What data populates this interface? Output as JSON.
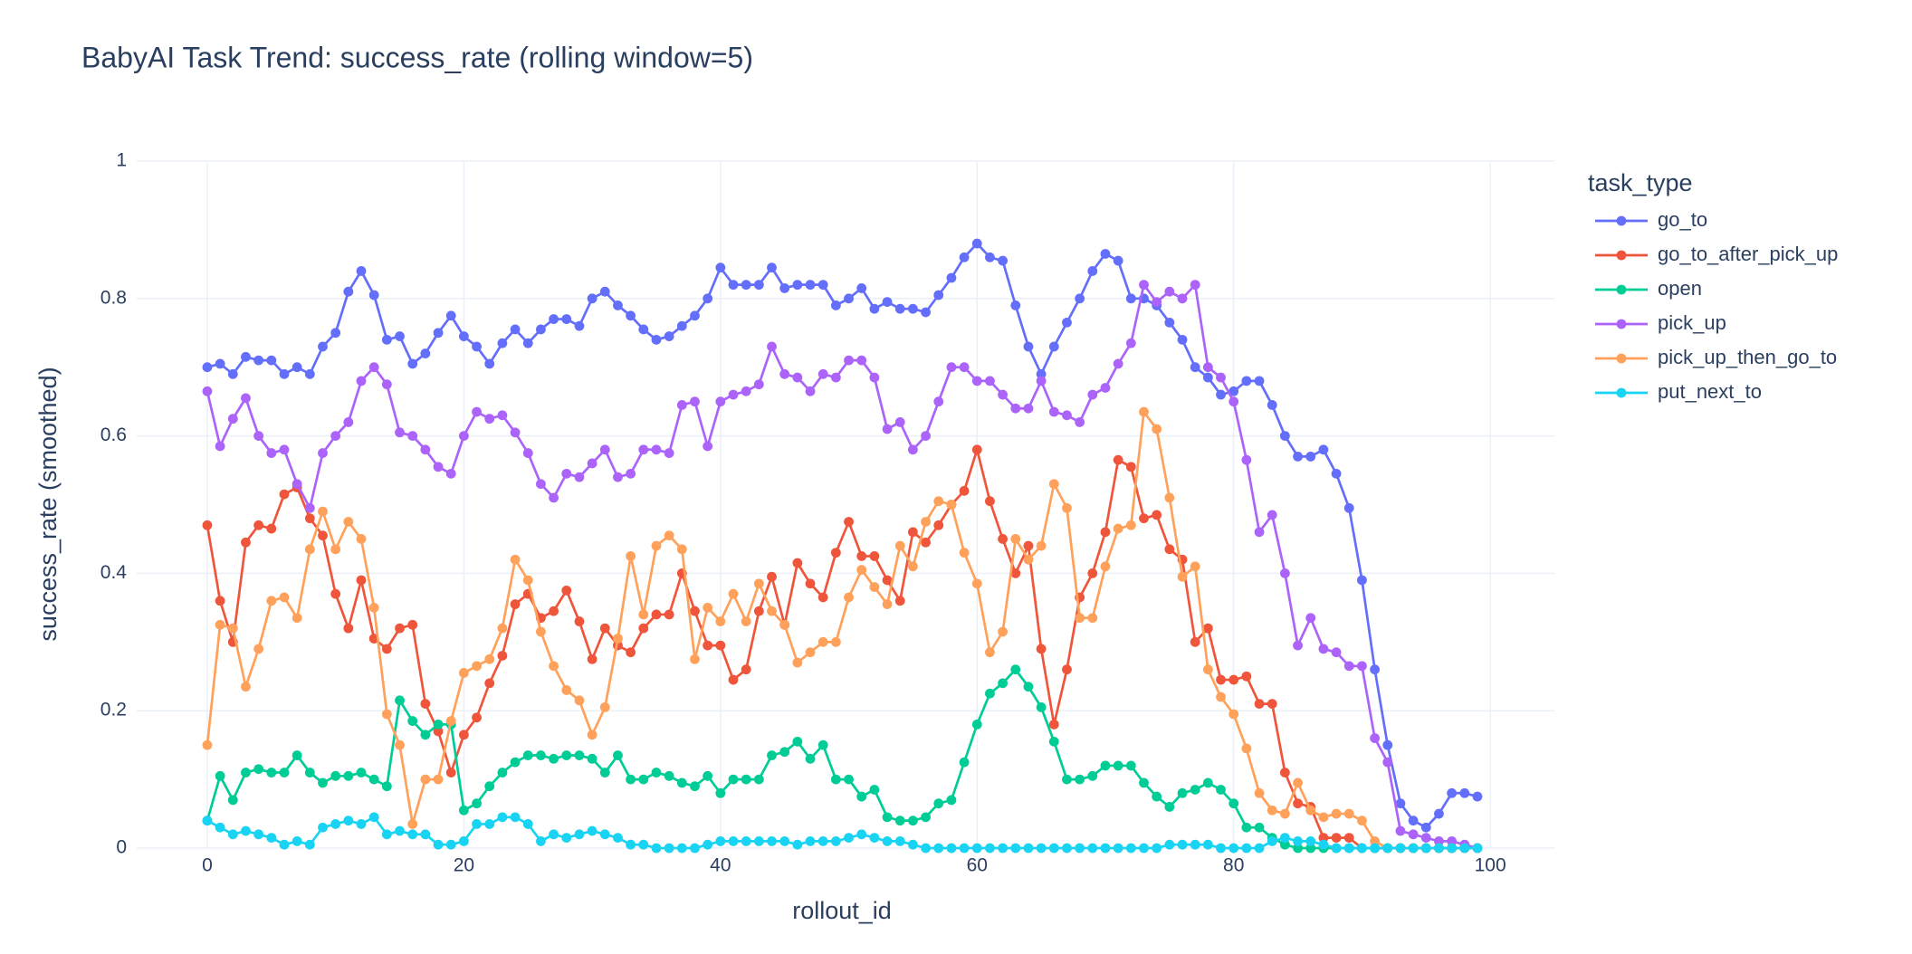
{
  "chart_data": {
    "type": "line",
    "title": "BabyAI Task Trend: success_rate (rolling window=5)",
    "x_label": "rollout_id",
    "y_label": "success_rate (smoothed)",
    "legend_title": "task_type",
    "legend": "right",
    "grid": true,
    "xlim": [
      -5.5,
      105
    ],
    "ylim": [
      0,
      1
    ],
    "xticks": [
      0,
      20,
      40,
      60,
      80,
      100
    ],
    "yticks": [
      0,
      0.2,
      0.4,
      0.6,
      0.8,
      1
    ],
    "x": [
      0,
      1,
      2,
      3,
      4,
      5,
      6,
      7,
      8,
      9,
      10,
      11,
      12,
      13,
      14,
      15,
      16,
      17,
      18,
      19,
      20,
      21,
      22,
      23,
      24,
      25,
      26,
      27,
      28,
      29,
      30,
      31,
      32,
      33,
      34,
      35,
      36,
      37,
      38,
      39,
      40,
      41,
      42,
      43,
      44,
      45,
      46,
      47,
      48,
      49,
      50,
      51,
      52,
      53,
      54,
      55,
      56,
      57,
      58,
      59,
      60,
      61,
      62,
      63,
      64,
      65,
      66,
      67,
      68,
      69,
      70,
      71,
      72,
      73,
      74,
      75,
      76,
      77,
      78,
      79,
      80,
      81,
      82,
      83,
      84,
      85,
      86,
      87,
      88,
      89,
      90,
      91,
      92,
      93,
      94,
      95,
      96,
      97,
      98,
      99
    ],
    "series": [
      {
        "name": "go_to",
        "color": "#636efa",
        "values": [
          0.7,
          0.705,
          0.69,
          0.715,
          0.71,
          0.71,
          0.69,
          0.7,
          0.69,
          0.73,
          0.75,
          0.81,
          0.84,
          0.805,
          0.74,
          0.745,
          0.705,
          0.72,
          0.75,
          0.775,
          0.745,
          0.73,
          0.705,
          0.735,
          0.755,
          0.735,
          0.755,
          0.77,
          0.77,
          0.76,
          0.8,
          0.81,
          0.79,
          0.775,
          0.755,
          0.74,
          0.745,
          0.76,
          0.775,
          0.8,
          0.845,
          0.82,
          0.82,
          0.82,
          0.845,
          0.815,
          0.82,
          0.82,
          0.82,
          0.79,
          0.8,
          0.815,
          0.785,
          0.795,
          0.785,
          0.785,
          0.78,
          0.805,
          0.83,
          0.86,
          0.88,
          0.86,
          0.855,
          0.79,
          0.73,
          0.69,
          0.73,
          0.765,
          0.8,
          0.84,
          0.865,
          0.855,
          0.8,
          0.8,
          0.79,
          0.765,
          0.74,
          0.7,
          0.685,
          0.66,
          0.665,
          0.68,
          0.68,
          0.645,
          0.6,
          0.57,
          0.57,
          0.58,
          0.545,
          0.495,
          0.39,
          0.26,
          0.15,
          0.065,
          0.04,
          0.03,
          0.05,
          0.08,
          0.08,
          0.075
        ]
      },
      {
        "name": "go_to_after_pick_up",
        "color": "#EF553B",
        "values": [
          0.47,
          0.36,
          0.3,
          0.445,
          0.47,
          0.465,
          0.515,
          0.525,
          0.48,
          0.455,
          0.37,
          0.32,
          0.39,
          0.305,
          0.29,
          0.32,
          0.325,
          0.21,
          0.17,
          0.11,
          0.165,
          0.19,
          0.24,
          0.28,
          0.355,
          0.37,
          0.335,
          0.345,
          0.375,
          0.33,
          0.275,
          0.32,
          0.295,
          0.285,
          0.32,
          0.34,
          0.34,
          0.4,
          0.345,
          0.295,
          0.295,
          0.245,
          0.26,
          0.345,
          0.395,
          0.325,
          0.415,
          0.385,
          0.365,
          0.43,
          0.475,
          0.425,
          0.425,
          0.39,
          0.36,
          0.46,
          0.445,
          0.47,
          0.5,
          0.52,
          0.58,
          0.505,
          0.45,
          0.4,
          0.44,
          0.29,
          0.18,
          0.26,
          0.365,
          0.4,
          0.46,
          0.565,
          0.555,
          0.48,
          0.485,
          0.435,
          0.42,
          0.3,
          0.32,
          0.245,
          0.245,
          0.25,
          0.21,
          0.21,
          0.11,
          0.065,
          0.06,
          0.015,
          0.015,
          0.015,
          0,
          0,
          0,
          0,
          0,
          0,
          0,
          0,
          0,
          0
        ]
      },
      {
        "name": "open",
        "color": "#00cc96",
        "values": [
          0.04,
          0.105,
          0.07,
          0.11,
          0.115,
          0.11,
          0.11,
          0.135,
          0.11,
          0.095,
          0.105,
          0.105,
          0.11,
          0.1,
          0.09,
          0.215,
          0.185,
          0.165,
          0.18,
          0.18,
          0.055,
          0.065,
          0.09,
          0.11,
          0.125,
          0.135,
          0.135,
          0.13,
          0.135,
          0.135,
          0.13,
          0.11,
          0.135,
          0.1,
          0.1,
          0.11,
          0.105,
          0.095,
          0.09,
          0.105,
          0.08,
          0.1,
          0.1,
          0.1,
          0.135,
          0.14,
          0.155,
          0.13,
          0.15,
          0.1,
          0.1,
          0.075,
          0.085,
          0.045,
          0.04,
          0.04,
          0.045,
          0.065,
          0.07,
          0.125,
          0.18,
          0.225,
          0.24,
          0.26,
          0.235,
          0.205,
          0.155,
          0.1,
          0.1,
          0.105,
          0.12,
          0.12,
          0.12,
          0.095,
          0.075,
          0.06,
          0.08,
          0.085,
          0.095,
          0.085,
          0.065,
          0.03,
          0.03,
          0.015,
          0.005,
          0,
          0,
          0,
          0,
          0,
          0,
          0,
          0,
          0,
          0,
          0,
          0,
          0,
          0,
          0
        ]
      },
      {
        "name": "pick_up",
        "color": "#ab63fa",
        "values": [
          0.665,
          0.585,
          0.625,
          0.655,
          0.6,
          0.575,
          0.58,
          0.53,
          0.495,
          0.575,
          0.6,
          0.62,
          0.68,
          0.7,
          0.675,
          0.605,
          0.6,
          0.58,
          0.555,
          0.545,
          0.6,
          0.635,
          0.625,
          0.63,
          0.605,
          0.575,
          0.53,
          0.51,
          0.545,
          0.54,
          0.56,
          0.58,
          0.54,
          0.545,
          0.58,
          0.58,
          0.575,
          0.645,
          0.65,
          0.585,
          0.65,
          0.66,
          0.665,
          0.675,
          0.73,
          0.69,
          0.685,
          0.665,
          0.69,
          0.685,
          0.71,
          0.71,
          0.685,
          0.61,
          0.62,
          0.58,
          0.6,
          0.65,
          0.7,
          0.7,
          0.68,
          0.68,
          0.66,
          0.64,
          0.64,
          0.68,
          0.635,
          0.63,
          0.62,
          0.66,
          0.67,
          0.705,
          0.735,
          0.82,
          0.795,
          0.81,
          0.8,
          0.82,
          0.7,
          0.685,
          0.65,
          0.565,
          0.46,
          0.485,
          0.4,
          0.295,
          0.335,
          0.29,
          0.285,
          0.265,
          0.265,
          0.16,
          0.125,
          0.025,
          0.02,
          0.015,
          0.01,
          0.01,
          0.005,
          0
        ]
      },
      {
        "name": "pick_up_then_go_to",
        "color": "#FFA15A",
        "values": [
          0.15,
          0.325,
          0.32,
          0.235,
          0.29,
          0.36,
          0.365,
          0.335,
          0.435,
          0.49,
          0.435,
          0.475,
          0.45,
          0.35,
          0.195,
          0.15,
          0.035,
          0.1,
          0.1,
          0.185,
          0.255,
          0.265,
          0.275,
          0.32,
          0.42,
          0.39,
          0.315,
          0.265,
          0.23,
          0.215,
          0.165,
          0.205,
          0.305,
          0.425,
          0.34,
          0.44,
          0.455,
          0.435,
          0.275,
          0.35,
          0.33,
          0.37,
          0.33,
          0.385,
          0.345,
          0.325,
          0.27,
          0.285,
          0.3,
          0.3,
          0.365,
          0.405,
          0.38,
          0.355,
          0.44,
          0.41,
          0.475,
          0.505,
          0.5,
          0.43,
          0.385,
          0.285,
          0.315,
          0.45,
          0.42,
          0.44,
          0.53,
          0.495,
          0.335,
          0.335,
          0.41,
          0.465,
          0.47,
          0.635,
          0.61,
          0.51,
          0.395,
          0.41,
          0.26,
          0.22,
          0.195,
          0.145,
          0.08,
          0.055,
          0.05,
          0.095,
          0.055,
          0.045,
          0.05,
          0.05,
          0.04,
          0.01,
          0,
          0,
          0,
          0,
          0,
          0,
          0,
          0
        ]
      },
      {
        "name": "put_next_to",
        "color": "#19d3f3",
        "values": [
          0.04,
          0.03,
          0.02,
          0.025,
          0.02,
          0.015,
          0.005,
          0.01,
          0.005,
          0.03,
          0.035,
          0.04,
          0.035,
          0.045,
          0.02,
          0.025,
          0.02,
          0.02,
          0.005,
          0.005,
          0.01,
          0.035,
          0.035,
          0.045,
          0.045,
          0.035,
          0.01,
          0.02,
          0.015,
          0.02,
          0.025,
          0.02,
          0.015,
          0.005,
          0.005,
          0,
          0,
          0,
          0,
          0.005,
          0.01,
          0.01,
          0.01,
          0.01,
          0.01,
          0.01,
          0.005,
          0.01,
          0.01,
          0.01,
          0.015,
          0.02,
          0.015,
          0.01,
          0.01,
          0.005,
          0,
          0,
          0,
          0,
          0,
          0,
          0,
          0,
          0,
          0,
          0,
          0,
          0,
          0,
          0,
          0,
          0,
          0,
          0,
          0.005,
          0.005,
          0.005,
          0.005,
          0,
          0,
          0,
          0,
          0.01,
          0.015,
          0.01,
          0.01,
          0.005,
          0,
          0,
          0,
          0,
          0,
          0,
          0,
          0,
          0,
          0,
          0,
          0
        ]
      }
    ]
  }
}
